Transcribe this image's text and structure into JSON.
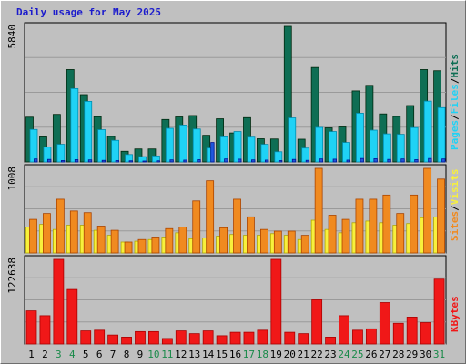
{
  "title": "Daily usage for May 2025",
  "colors": {
    "hits": "#0e6e54",
    "files": "#1fd2f5",
    "pages": "#2058dc",
    "visits": "#f08a20",
    "sites": "#f8f03c",
    "kbytes": "#f01818",
    "weekend": "#1a8a4a",
    "text": "#000000",
    "title": "#1c1ccc"
  },
  "chart_data": [
    {
      "type": "bar",
      "name": "hits-files-pages",
      "max_label": "5840",
      "ylim": [
        0,
        5840
      ],
      "legend": [
        "Pages",
        "Files",
        "Hits"
      ],
      "categories": [
        "1",
        "2",
        "3",
        "4",
        "5",
        "6",
        "7",
        "8",
        "9",
        "10",
        "11",
        "12",
        "13",
        "14",
        "15",
        "16",
        "17",
        "18",
        "19",
        "20",
        "21",
        "22",
        "23",
        "24",
        "25",
        "26",
        "27",
        "28",
        "29",
        "30",
        "31"
      ],
      "series": [
        {
          "name": "Hits",
          "values": [
            1930,
            1080,
            2050,
            3980,
            2900,
            1950,
            1100,
            460,
            560,
            560,
            1830,
            1940,
            2000,
            1150,
            1860,
            1250,
            1910,
            1000,
            990,
            5840,
            980,
            4070,
            1470,
            1510,
            3060,
            3300,
            2070,
            1960,
            2430,
            3980,
            3930
          ]
        },
        {
          "name": "Files",
          "values": [
            1400,
            640,
            760,
            3160,
            2610,
            1390,
            930,
            320,
            230,
            260,
            1450,
            1590,
            1420,
            600,
            1080,
            1310,
            1070,
            760,
            440,
            1900,
            600,
            1490,
            1310,
            840,
            2100,
            1370,
            1210,
            1190,
            1480,
            2620,
            2340
          ]
        },
        {
          "name": "Pages",
          "values": [
            130,
            110,
            60,
            100,
            90,
            70,
            60,
            50,
            40,
            50,
            90,
            80,
            100,
            840,
            130,
            120,
            90,
            80,
            60,
            110,
            70,
            130,
            120,
            80,
            150,
            140,
            110,
            130,
            100,
            150,
            130
          ]
        }
      ]
    },
    {
      "type": "bar",
      "name": "visits-sites",
      "max_label": "1008",
      "ylim": [
        0,
        1008
      ],
      "legend": [
        "Sites",
        "Visits"
      ],
      "categories": [
        "1",
        "2",
        "3",
        "4",
        "5",
        "6",
        "7",
        "8",
        "9",
        "10",
        "11",
        "12",
        "13",
        "14",
        "15",
        "16",
        "17",
        "18",
        "19",
        "20",
        "21",
        "22",
        "23",
        "24",
        "25",
        "26",
        "27",
        "28",
        "29",
        "30",
        "31"
      ],
      "series": [
        {
          "name": "Visits",
          "values": [
            400,
            470,
            640,
            500,
            480,
            320,
            270,
            130,
            160,
            190,
            290,
            310,
            620,
            860,
            300,
            640,
            430,
            280,
            260,
            260,
            210,
            1008,
            450,
            400,
            640,
            640,
            690,
            470,
            690,
            1008,
            880
          ]
        },
        {
          "name": "Sites",
          "values": [
            310,
            340,
            280,
            330,
            330,
            270,
            210,
            130,
            140,
            160,
            190,
            240,
            170,
            180,
            200,
            220,
            210,
            210,
            230,
            210,
            160,
            390,
            280,
            240,
            360,
            380,
            360,
            330,
            350,
            420,
            430
          ]
        }
      ]
    },
    {
      "type": "bar",
      "name": "kbytes",
      "max_label": "122638",
      "ylim": [
        0,
        122638
      ],
      "legend": [
        "KBytes"
      ],
      "categories": [
        "1",
        "2",
        "3",
        "4",
        "5",
        "6",
        "7",
        "8",
        "9",
        "10",
        "11",
        "12",
        "13",
        "14",
        "15",
        "16",
        "17",
        "18",
        "19",
        "20",
        "21",
        "22",
        "23",
        "24",
        "25",
        "26",
        "27",
        "28",
        "29",
        "30",
        "31"
      ],
      "series": [
        {
          "name": "KBytes",
          "values": [
            48000,
            41000,
            122638,
            79000,
            19000,
            20000,
            13000,
            10000,
            18000,
            18000,
            8000,
            19000,
            15000,
            19000,
            12000,
            17000,
            17000,
            20000,
            122638,
            17000,
            15000,
            64000,
            10000,
            41000,
            20000,
            22000,
            60000,
            30000,
            39000,
            31000,
            94000
          ]
        }
      ]
    }
  ],
  "weekend_days": [
    "3",
    "4",
    "10",
    "11",
    "17",
    "18",
    "24",
    "25",
    "31"
  ]
}
